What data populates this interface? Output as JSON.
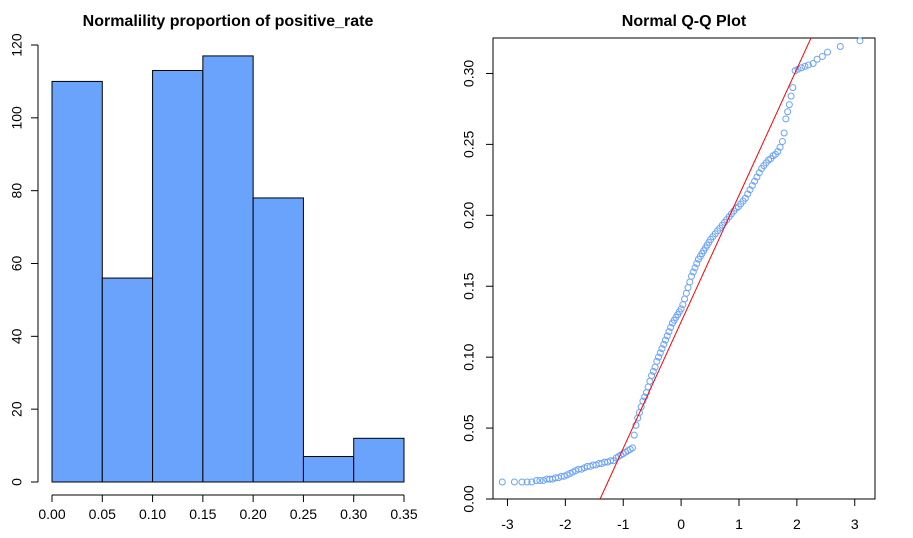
{
  "chart_data": [
    {
      "type": "bar",
      "title": "Normalility proportion of positive_rate",
      "xlabel": "",
      "ylabel": "",
      "bin_edges": [
        0.0,
        0.05,
        0.1,
        0.15,
        0.2,
        0.25,
        0.3,
        0.35
      ],
      "values": [
        110,
        56,
        113,
        117,
        78,
        7,
        12
      ],
      "xlim": [
        0.0,
        0.35
      ],
      "ylim": [
        0,
        120
      ],
      "x_ticks": [
        "0.00",
        "0.05",
        "0.10",
        "0.15",
        "0.20",
        "0.25",
        "0.30",
        "0.35"
      ],
      "y_ticks": [
        "0",
        "20",
        "40",
        "60",
        "80",
        "100",
        "120"
      ],
      "bar_color": "#6aa3fc",
      "grid": false
    },
    {
      "type": "scatter",
      "title": "Normal Q-Q Plot",
      "xlabel": "",
      "ylabel": "",
      "xlim": [
        -3.25,
        3.35
      ],
      "ylim": [
        0.0,
        0.325
      ],
      "x_ticks": [
        "-3",
        "-2",
        "-1",
        "0",
        "1",
        "2",
        "3"
      ],
      "y_ticks": [
        "0.00",
        "0.05",
        "0.10",
        "0.15",
        "0.20",
        "0.25",
        "0.30"
      ],
      "point_color": "#6aa3fc",
      "line_color": "#ff0000",
      "reference_line": {
        "x": [
          -1.4,
          2.3
        ],
        "y": [
          0.0,
          0.33
        ]
      },
      "grid": false,
      "points": [
        [
          -3.09,
          0.012
        ],
        [
          -2.88,
          0.012
        ],
        [
          -2.75,
          0.012
        ],
        [
          -2.66,
          0.012
        ],
        [
          -2.58,
          0.012
        ],
        [
          -2.5,
          0.013
        ],
        [
          -2.44,
          0.013
        ],
        [
          -2.38,
          0.013
        ],
        [
          -2.32,
          0.014
        ],
        [
          -2.27,
          0.014
        ],
        [
          -2.22,
          0.014
        ],
        [
          -2.17,
          0.015
        ],
        [
          -2.12,
          0.015
        ],
        [
          -2.07,
          0.016
        ],
        [
          -2.02,
          0.016
        ],
        [
          -1.97,
          0.017
        ],
        [
          -1.92,
          0.018
        ],
        [
          -1.87,
          0.019
        ],
        [
          -1.82,
          0.02
        ],
        [
          -1.77,
          0.021
        ],
        [
          -1.72,
          0.021
        ],
        [
          -1.67,
          0.022
        ],
        [
          -1.62,
          0.023
        ],
        [
          -1.57,
          0.023
        ],
        [
          -1.52,
          0.024
        ],
        [
          -1.47,
          0.024
        ],
        [
          -1.42,
          0.025
        ],
        [
          -1.37,
          0.025
        ],
        [
          -1.32,
          0.026
        ],
        [
          -1.27,
          0.026
        ],
        [
          -1.22,
          0.027
        ],
        [
          -1.17,
          0.027
        ],
        [
          -1.12,
          0.029
        ],
        [
          -1.08,
          0.03
        ],
        [
          -1.04,
          0.031
        ],
        [
          -1.0,
          0.032
        ],
        [
          -0.96,
          0.033
        ],
        [
          -0.92,
          0.034
        ],
        [
          -0.88,
          0.035
        ],
        [
          -0.84,
          0.036
        ],
        [
          -0.81,
          0.045
        ],
        [
          -0.78,
          0.052
        ],
        [
          -0.75,
          0.057
        ],
        [
          -0.72,
          0.061
        ],
        [
          -0.69,
          0.065
        ],
        [
          -0.66,
          0.069
        ],
        [
          -0.63,
          0.072
        ],
        [
          -0.6,
          0.075
        ],
        [
          -0.57,
          0.079
        ],
        [
          -0.54,
          0.083
        ],
        [
          -0.51,
          0.087
        ],
        [
          -0.48,
          0.09
        ],
        [
          -0.45,
          0.093
        ],
        [
          -0.42,
          0.097
        ],
        [
          -0.39,
          0.1
        ],
        [
          -0.36,
          0.103
        ],
        [
          -0.33,
          0.106
        ],
        [
          -0.3,
          0.109
        ],
        [
          -0.27,
          0.112
        ],
        [
          -0.24,
          0.115
        ],
        [
          -0.21,
          0.118
        ],
        [
          -0.18,
          0.121
        ],
        [
          -0.15,
          0.124
        ],
        [
          -0.12,
          0.126
        ],
        [
          -0.09,
          0.128
        ],
        [
          -0.06,
          0.13
        ],
        [
          -0.03,
          0.132
        ],
        [
          0.0,
          0.134
        ],
        [
          0.03,
          0.137
        ],
        [
          0.06,
          0.141
        ],
        [
          0.09,
          0.145
        ],
        [
          0.12,
          0.149
        ],
        [
          0.15,
          0.153
        ],
        [
          0.18,
          0.157
        ],
        [
          0.21,
          0.16
        ],
        [
          0.24,
          0.163
        ],
        [
          0.27,
          0.166
        ],
        [
          0.3,
          0.169
        ],
        [
          0.33,
          0.171
        ],
        [
          0.36,
          0.173
        ],
        [
          0.39,
          0.175
        ],
        [
          0.42,
          0.177
        ],
        [
          0.45,
          0.179
        ],
        [
          0.48,
          0.181
        ],
        [
          0.51,
          0.183
        ],
        [
          0.55,
          0.185
        ],
        [
          0.59,
          0.187
        ],
        [
          0.63,
          0.189
        ],
        [
          0.67,
          0.191
        ],
        [
          0.71,
          0.193
        ],
        [
          0.75,
          0.195
        ],
        [
          0.79,
          0.197
        ],
        [
          0.83,
          0.199
        ],
        [
          0.87,
          0.201
        ],
        [
          0.91,
          0.203
        ],
        [
          0.95,
          0.205
        ],
        [
          0.99,
          0.206
        ],
        [
          1.03,
          0.208
        ],
        [
          1.07,
          0.21
        ],
        [
          1.11,
          0.212
        ],
        [
          1.15,
          0.215
        ],
        [
          1.19,
          0.218
        ],
        [
          1.23,
          0.221
        ],
        [
          1.27,
          0.224
        ],
        [
          1.31,
          0.227
        ],
        [
          1.35,
          0.23
        ],
        [
          1.39,
          0.233
        ],
        [
          1.43,
          0.235
        ],
        [
          1.47,
          0.237
        ],
        [
          1.51,
          0.239
        ],
        [
          1.55,
          0.24
        ],
        [
          1.59,
          0.242
        ],
        [
          1.63,
          0.243
        ],
        [
          1.67,
          0.245
        ],
        [
          1.71,
          0.248
        ],
        [
          1.75,
          0.252
        ],
        [
          1.78,
          0.258
        ],
        [
          1.81,
          0.268
        ],
        [
          1.84,
          0.273
        ],
        [
          1.87,
          0.278
        ],
        [
          1.9,
          0.284
        ],
        [
          1.93,
          0.29
        ],
        [
          1.97,
          0.302
        ],
        [
          2.02,
          0.303
        ],
        [
          2.08,
          0.304
        ],
        [
          2.14,
          0.305
        ],
        [
          2.2,
          0.306
        ],
        [
          2.28,
          0.307
        ],
        [
          2.35,
          0.31
        ],
        [
          2.44,
          0.312
        ],
        [
          2.53,
          0.315
        ],
        [
          2.75,
          0.319
        ],
        [
          3.09,
          0.323
        ]
      ]
    }
  ]
}
